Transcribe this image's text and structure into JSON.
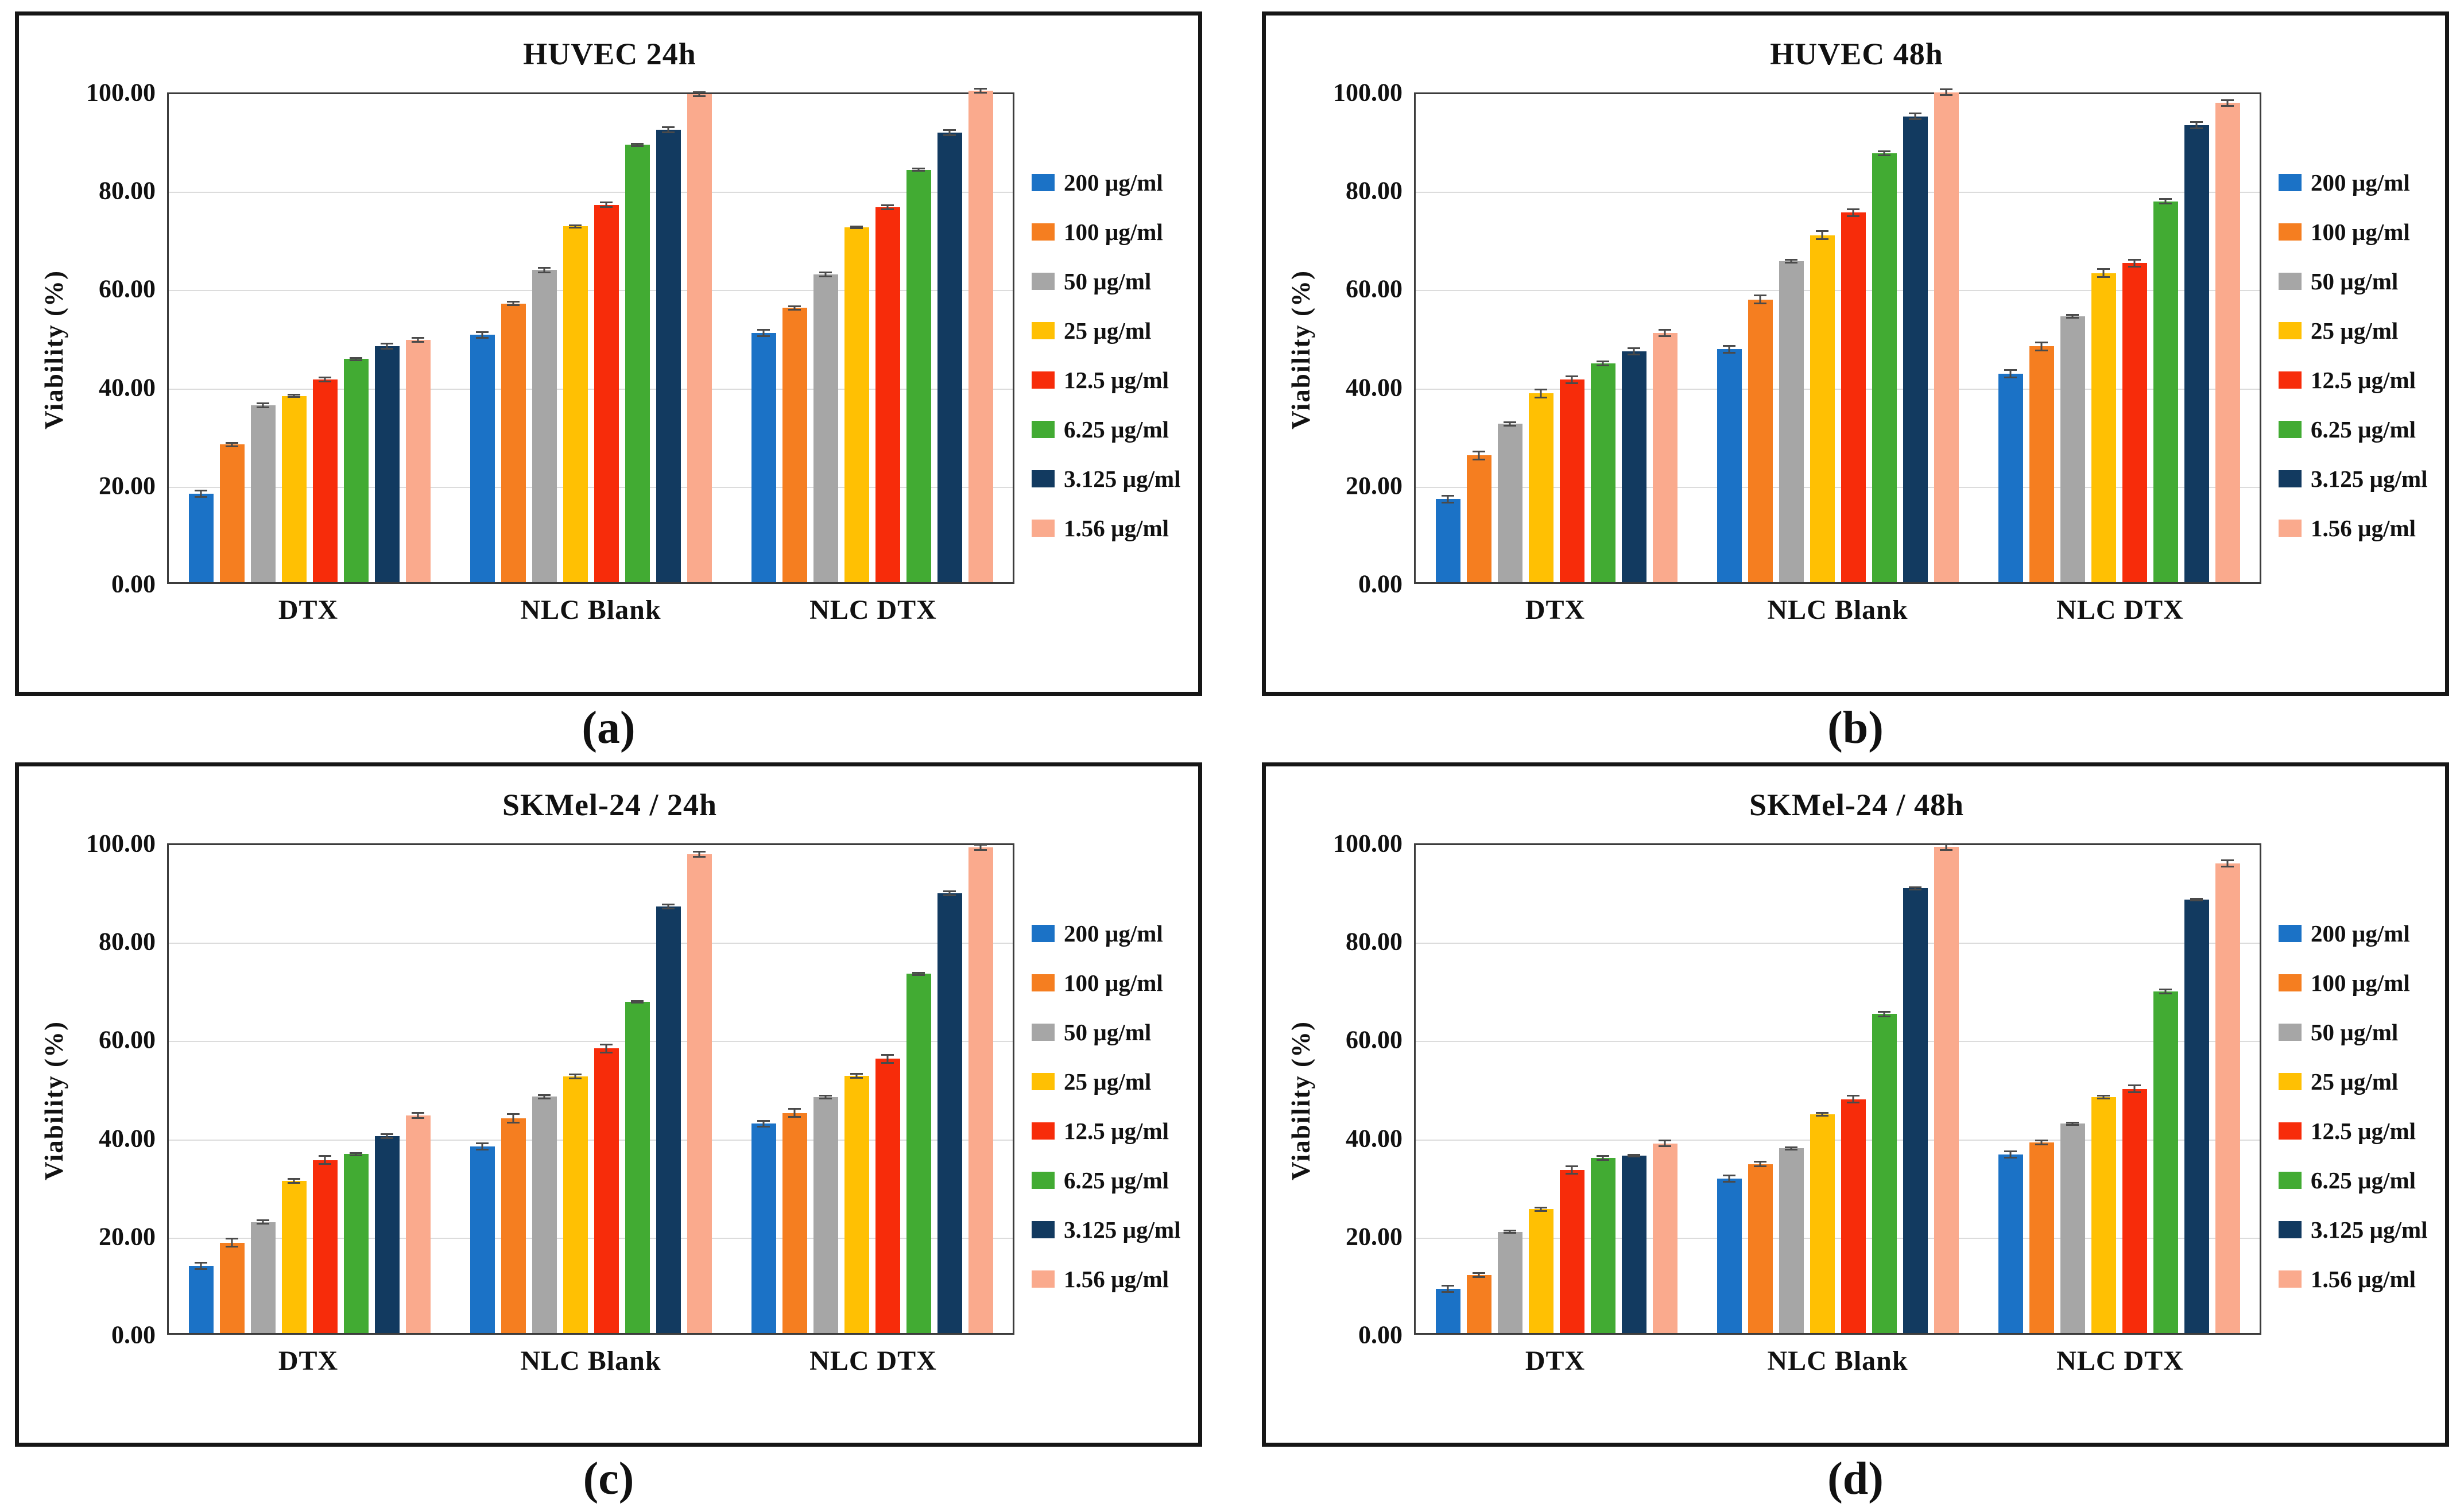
{
  "y_axis": {
    "label": "Viability  (%)",
    "tick_labels": [
      "0.00",
      "20.00",
      "40.00",
      "60.00",
      "80.00",
      "100.00"
    ],
    "tick_values": [
      0,
      20,
      40,
      60,
      80,
      100
    ],
    "max": 100
  },
  "palette": {
    "blue": "#1B72C6",
    "orange": "#F57E20",
    "gray": "#A6A6A6",
    "yellow": "#FFC003",
    "red": "#F72C0A",
    "green": "#42AB33",
    "navy": "#123A60",
    "peach": "#FAAA8D"
  },
  "chart_data": [
    {
      "type": "bar",
      "id": "a",
      "caption": "(a)",
      "title": "HUVEC 24h",
      "ylabel": "Viability  (%)",
      "ylim": [
        0,
        100
      ],
      "grid": true,
      "legend_position": "right",
      "categories": [
        "DTX",
        "NLC Blank",
        "NLC DTX"
      ],
      "series": [
        {
          "name": "200 µg/ml",
          "color": "#1B72C6",
          "values": [
            18.0,
            50.3,
            50.7
          ],
          "error": 0.8
        },
        {
          "name": "100 µg/ml",
          "color": "#F57E20",
          "values": [
            28.0,
            56.7,
            55.8
          ],
          "error": 0.5
        },
        {
          "name": "50 µg/ml",
          "color": "#A6A6A6",
          "values": [
            36.0,
            63.5,
            62.6
          ],
          "error": 0.6
        },
        {
          "name": "25 µg/ml",
          "color": "#FFC003",
          "values": [
            37.9,
            72.4,
            72.2
          ],
          "error": 0.4
        },
        {
          "name": "12.5 µg/ml",
          "color": "#F72C0A",
          "values": [
            41.2,
            76.8,
            76.3
          ],
          "error": 0.6
        },
        {
          "name": "6.25 µg/ml",
          "color": "#42AB33",
          "values": [
            45.4,
            89.0,
            83.9
          ],
          "error": 0.4
        },
        {
          "name": "3.125 µg/ml",
          "color": "#123A60",
          "values": [
            48.0,
            92.1,
            91.5
          ],
          "error": 0.7
        },
        {
          "name": "1.56 µg/ml",
          "color": "#FAAA8D",
          "values": [
            49.3,
            99.3,
            100.0
          ],
          "error": 0.6
        }
      ]
    },
    {
      "type": "bar",
      "id": "b",
      "caption": "(b)",
      "title": "HUVEC 48h",
      "ylabel": "Viability  (%)",
      "ylim": [
        0,
        100
      ],
      "grid": true,
      "legend_position": "right",
      "categories": [
        "DTX",
        "NLC Blank",
        "NLC DTX"
      ],
      "series": [
        {
          "name": "200 µg/ml",
          "color": "#1B72C6",
          "values": [
            16.9,
            47.4,
            42.4
          ],
          "error": 0.9
        },
        {
          "name": "100 µg/ml",
          "color": "#F57E20",
          "values": [
            25.8,
            57.5,
            48.0
          ],
          "error": 1.0
        },
        {
          "name": "50 µg/ml",
          "color": "#A6A6A6",
          "values": [
            32.2,
            65.3,
            54.1
          ],
          "error": 0.5
        },
        {
          "name": "25 µg/ml",
          "color": "#FFC003",
          "values": [
            38.4,
            70.6,
            62.9
          ],
          "error": 1.0
        },
        {
          "name": "12.5 µg/ml",
          "color": "#F72C0A",
          "values": [
            41.2,
            75.2,
            64.9
          ],
          "error": 0.9
        },
        {
          "name": "6.25 µg/ml",
          "color": "#42AB33",
          "values": [
            44.5,
            87.3,
            77.5
          ],
          "error": 0.6
        },
        {
          "name": "3.125 µg/ml",
          "color": "#123A60",
          "values": [
            47.0,
            94.8,
            93.0
          ],
          "error": 0.8
        },
        {
          "name": "1.56 µg/ml",
          "color": "#FAAA8D",
          "values": [
            50.7,
            99.7,
            97.5
          ],
          "error": 0.8
        }
      ]
    },
    {
      "type": "bar",
      "id": "c",
      "caption": "(c)",
      "title": "SKMel-24 / 24h",
      "ylabel": "Viability  (%)",
      "ylim": [
        0,
        100
      ],
      "grid": true,
      "legend_position": "right",
      "categories": [
        "DTX",
        "NLC Blank",
        "NLC DTX"
      ],
      "series": [
        {
          "name": "200 µg/ml",
          "color": "#1B72C6",
          "values": [
            13.7,
            38.0,
            42.6
          ],
          "error": 0.8
        },
        {
          "name": "100 µg/ml",
          "color": "#F57E20",
          "values": [
            18.4,
            43.7,
            44.8
          ],
          "error": 1.0
        },
        {
          "name": "50 µg/ml",
          "color": "#A6A6A6",
          "values": [
            22.6,
            48.1,
            48.0
          ],
          "error": 0.5
        },
        {
          "name": "25 µg/ml",
          "color": "#FFC003",
          "values": [
            31.0,
            52.2,
            52.3
          ],
          "error": 0.6
        },
        {
          "name": "12.5 µg/ml",
          "color": "#F72C0A",
          "values": [
            35.2,
            57.9,
            55.8
          ],
          "error": 1.0
        },
        {
          "name": "6.25 µg/ml",
          "color": "#42AB33",
          "values": [
            36.4,
            67.4,
            73.1
          ],
          "error": 0.4
        },
        {
          "name": "3.125 µg/ml",
          "color": "#123A60",
          "values": [
            40.1,
            86.8,
            89.5
          ],
          "error": 0.6
        },
        {
          "name": "1.56 µg/ml",
          "color": "#FAAA8D",
          "values": [
            44.3,
            97.4,
            98.8
          ],
          "error": 0.7
        }
      ]
    },
    {
      "type": "bar",
      "id": "d",
      "caption": "(d)",
      "title": "SKMel-24 / 48h",
      "ylabel": "Viability  (%)",
      "ylim": [
        0,
        100
      ],
      "grid": true,
      "legend_position": "right",
      "categories": [
        "DTX",
        "NLC Blank",
        "NLC DTX"
      ],
      "series": [
        {
          "name": "200 µg/ml",
          "color": "#1B72C6",
          "values": [
            9.0,
            31.4,
            36.3
          ],
          "error": 0.8
        },
        {
          "name": "100 µg/ml",
          "color": "#F57E20",
          "values": [
            11.8,
            34.4,
            38.8
          ],
          "error": 0.6
        },
        {
          "name": "50 µg/ml",
          "color": "#A6A6A6",
          "values": [
            20.6,
            37.6,
            42.6
          ],
          "error": 0.4
        },
        {
          "name": "25 µg/ml",
          "color": "#FFC003",
          "values": [
            25.2,
            44.5,
            48.0
          ],
          "error": 0.5
        },
        {
          "name": "12.5 µg/ml",
          "color": "#F72C0A",
          "values": [
            33.2,
            47.6,
            49.7
          ],
          "error": 0.9
        },
        {
          "name": "6.25 µg/ml",
          "color": "#42AB33",
          "values": [
            35.6,
            64.9,
            69.5
          ],
          "error": 0.6
        },
        {
          "name": "3.125 µg/ml",
          "color": "#123A60",
          "values": [
            36.1,
            90.5,
            88.2
          ],
          "error": 0.4
        },
        {
          "name": "1.56 µg/ml",
          "color": "#FAAA8D",
          "values": [
            38.6,
            98.9,
            95.6
          ],
          "error": 0.8
        }
      ]
    }
  ]
}
